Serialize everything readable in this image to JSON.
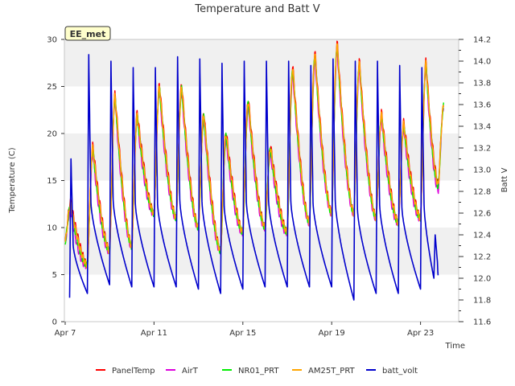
{
  "chart_data": {
    "type": "line",
    "title": "Temperature and Batt V",
    "xlabel": "Time",
    "ylabel_left": "Temperature (C)",
    "ylabel_right": "Batt V",
    "badge": "EE_met",
    "x_start": "Apr 7",
    "x_end": "Apr 24",
    "x_ticks": [
      {
        "day": 0,
        "label": "Apr 7"
      },
      {
        "day": 4,
        "label": "Apr 11"
      },
      {
        "day": 8,
        "label": "Apr 15"
      },
      {
        "day": 12,
        "label": "Apr 19"
      },
      {
        "day": 16,
        "label": "Apr 23"
      }
    ],
    "y_left_lim": [
      0,
      30
    ],
    "y_left_ticks": [
      0,
      5,
      10,
      15,
      20,
      25,
      30
    ],
    "y_right_lim": [
      11.6,
      14.2
    ],
    "y_right_ticks": [
      11.6,
      11.8,
      12.0,
      12.2,
      12.4,
      12.6,
      12.8,
      13.0,
      13.2,
      13.4,
      13.6,
      13.8,
      14.0,
      14.2
    ],
    "grid": "horizontal bands",
    "legend_position": "bottom",
    "temp_days": [
      {
        "day": 0,
        "min": 8.5,
        "max": 12.5
      },
      {
        "day": 1,
        "min": 6.0,
        "max": 18.5
      },
      {
        "day": 2,
        "min": 7.5,
        "max": 24.0
      },
      {
        "day": 3,
        "min": 8.0,
        "max": 22.0
      },
      {
        "day": 4,
        "min": 11.5,
        "max": 25.0
      },
      {
        "day": 5,
        "min": 11.0,
        "max": 25.0
      },
      {
        "day": 6,
        "min": 10.0,
        "max": 22.0
      },
      {
        "day": 7,
        "min": 7.5,
        "max": 20.0
      },
      {
        "day": 8,
        "min": 9.5,
        "max": 23.5
      },
      {
        "day": 9,
        "min": 10.0,
        "max": 18.5
      },
      {
        "day": 10,
        "min": 9.5,
        "max": 27.0
      },
      {
        "day": 11,
        "min": 10.5,
        "max": 28.5
      },
      {
        "day": 12,
        "min": 11.5,
        "max": 29.5
      },
      {
        "day": 13,
        "min": 11.5,
        "max": 27.5
      },
      {
        "day": 14,
        "min": 11.0,
        "max": 22.0
      },
      {
        "day": 15,
        "min": 10.5,
        "max": 21.0
      },
      {
        "day": 16,
        "min": 11.0,
        "max": 27.5
      },
      {
        "day": 16.8,
        "min": 14.5,
        "max": 23.0
      }
    ],
    "batt_days": [
      {
        "day": 0.2,
        "min": 11.82,
        "max": 13.1
      },
      {
        "day": 1.0,
        "min": 11.86,
        "max": 14.06
      },
      {
        "day": 2.0,
        "min": 11.94,
        "max": 14.0
      },
      {
        "day": 3.0,
        "min": 11.92,
        "max": 13.94
      },
      {
        "day": 4.0,
        "min": 11.92,
        "max": 13.94
      },
      {
        "day": 5.0,
        "min": 11.92,
        "max": 14.04
      },
      {
        "day": 6.0,
        "min": 11.9,
        "max": 14.02
      },
      {
        "day": 7.0,
        "min": 11.86,
        "max": 13.98
      },
      {
        "day": 8.0,
        "min": 11.9,
        "max": 14.0
      },
      {
        "day": 9.0,
        "min": 11.92,
        "max": 14.0
      },
      {
        "day": 10.0,
        "min": 11.92,
        "max": 14.0
      },
      {
        "day": 11.0,
        "min": 11.92,
        "max": 13.96
      },
      {
        "day": 12.0,
        "min": 11.92,
        "max": 14.02
      },
      {
        "day": 13.0,
        "min": 11.8,
        "max": 14.0
      },
      {
        "day": 14.0,
        "min": 11.86,
        "max": 14.0
      },
      {
        "day": 15.0,
        "min": 11.86,
        "max": 13.96
      },
      {
        "day": 16.0,
        "min": 11.9,
        "max": 13.94
      },
      {
        "day": 16.6,
        "min": 12.0,
        "max": 12.4
      }
    ],
    "series": [
      {
        "name": "PanelTemp",
        "color": "#ff0000",
        "offset": 0.4
      },
      {
        "name": "AirT",
        "color": "#dd00dd",
        "offset": -0.9
      },
      {
        "name": "NR01_PRT",
        "color": "#00ee00",
        "offset": -0.3
      },
      {
        "name": "AM25T_PRT",
        "color": "#ffa500",
        "offset": 0.0
      },
      {
        "name": "batt_volt",
        "color": "#0000cc"
      }
    ]
  }
}
